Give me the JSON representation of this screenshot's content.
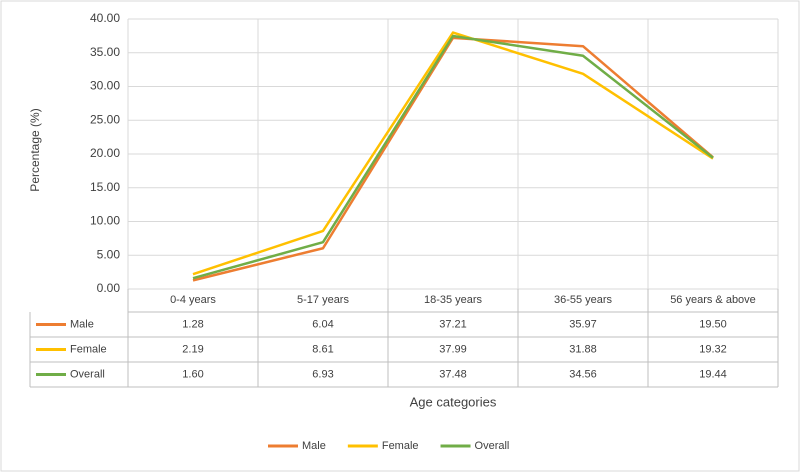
{
  "chart_data": {
    "type": "line",
    "x_label": "Age categories",
    "y_label": "Percentage (%)",
    "categories": [
      "0-4 years",
      "5-17 years",
      "18-35 years",
      "36-55 years",
      "56 years & above"
    ],
    "series": [
      {
        "name": "Male",
        "color": "#ed7d31",
        "values": [
          1.28,
          6.04,
          37.21,
          35.97,
          19.5
        ],
        "value_labels": [
          "1.28",
          "6.04",
          "37.21",
          "35.97",
          "19.50"
        ]
      },
      {
        "name": "Female",
        "color": "#ffc000",
        "values": [
          2.19,
          8.61,
          37.99,
          31.88,
          19.32
        ],
        "value_labels": [
          "2.19",
          "8.61",
          "37.99",
          "31.88",
          "19.32"
        ]
      },
      {
        "name": "Overall",
        "color": "#70ad47",
        "values": [
          1.6,
          6.93,
          37.48,
          34.56,
          19.44
        ],
        "value_labels": [
          "1.60",
          "6.93",
          "37.48",
          "34.56",
          "19.44"
        ]
      }
    ],
    "ylim": [
      0,
      40
    ],
    "yticks": [
      {
        "value": 0,
        "label": "0.00"
      },
      {
        "value": 5,
        "label": "5.00"
      },
      {
        "value": 10,
        "label": "10.00"
      },
      {
        "value": 15,
        "label": "15.00"
      },
      {
        "value": 20,
        "label": "20.00"
      },
      {
        "value": 25,
        "label": "25.00"
      },
      {
        "value": 30,
        "label": "30.00"
      },
      {
        "value": 35,
        "label": "35.00"
      },
      {
        "value": 40,
        "label": "40.00"
      }
    ],
    "grid": true,
    "legend": "bottom"
  }
}
